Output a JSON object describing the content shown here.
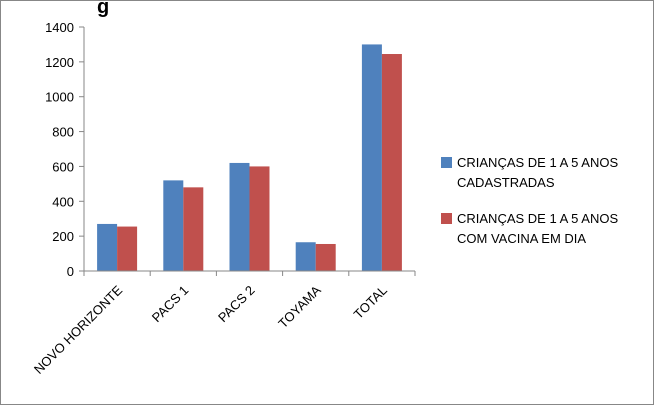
{
  "chart_data": {
    "type": "bar",
    "title": "g",
    "categories": [
      "NOVO HORIZONTE",
      "PACS 1",
      "PACS 2",
      "TOYAMA",
      "TOTAL"
    ],
    "series": [
      {
        "name": "CRIANÇAS DE 1 A 5 ANOS CADASTRADAS",
        "legend_lines": [
          "CRIANÇAS DE 1 A 5 ANOS",
          "CADASTRADAS"
        ],
        "color": "#4f81bd",
        "values": [
          270,
          520,
          620,
          165,
          1300
        ]
      },
      {
        "name": "CRIANÇAS DE 1 A 5 ANOS COM VACINA EM DIA",
        "legend_lines": [
          "CRIANÇAS DE 1 A 5 ANOS",
          "COM VACINA EM DIA"
        ],
        "color": "#c0504d",
        "values": [
          255,
          480,
          600,
          155,
          1245
        ]
      }
    ],
    "ylim": [
      0,
      1400
    ],
    "yticks": [
      "0",
      "200",
      "400",
      "600",
      "800",
      "1000",
      "1200",
      "1400"
    ],
    "grid": false,
    "legend": "right"
  }
}
